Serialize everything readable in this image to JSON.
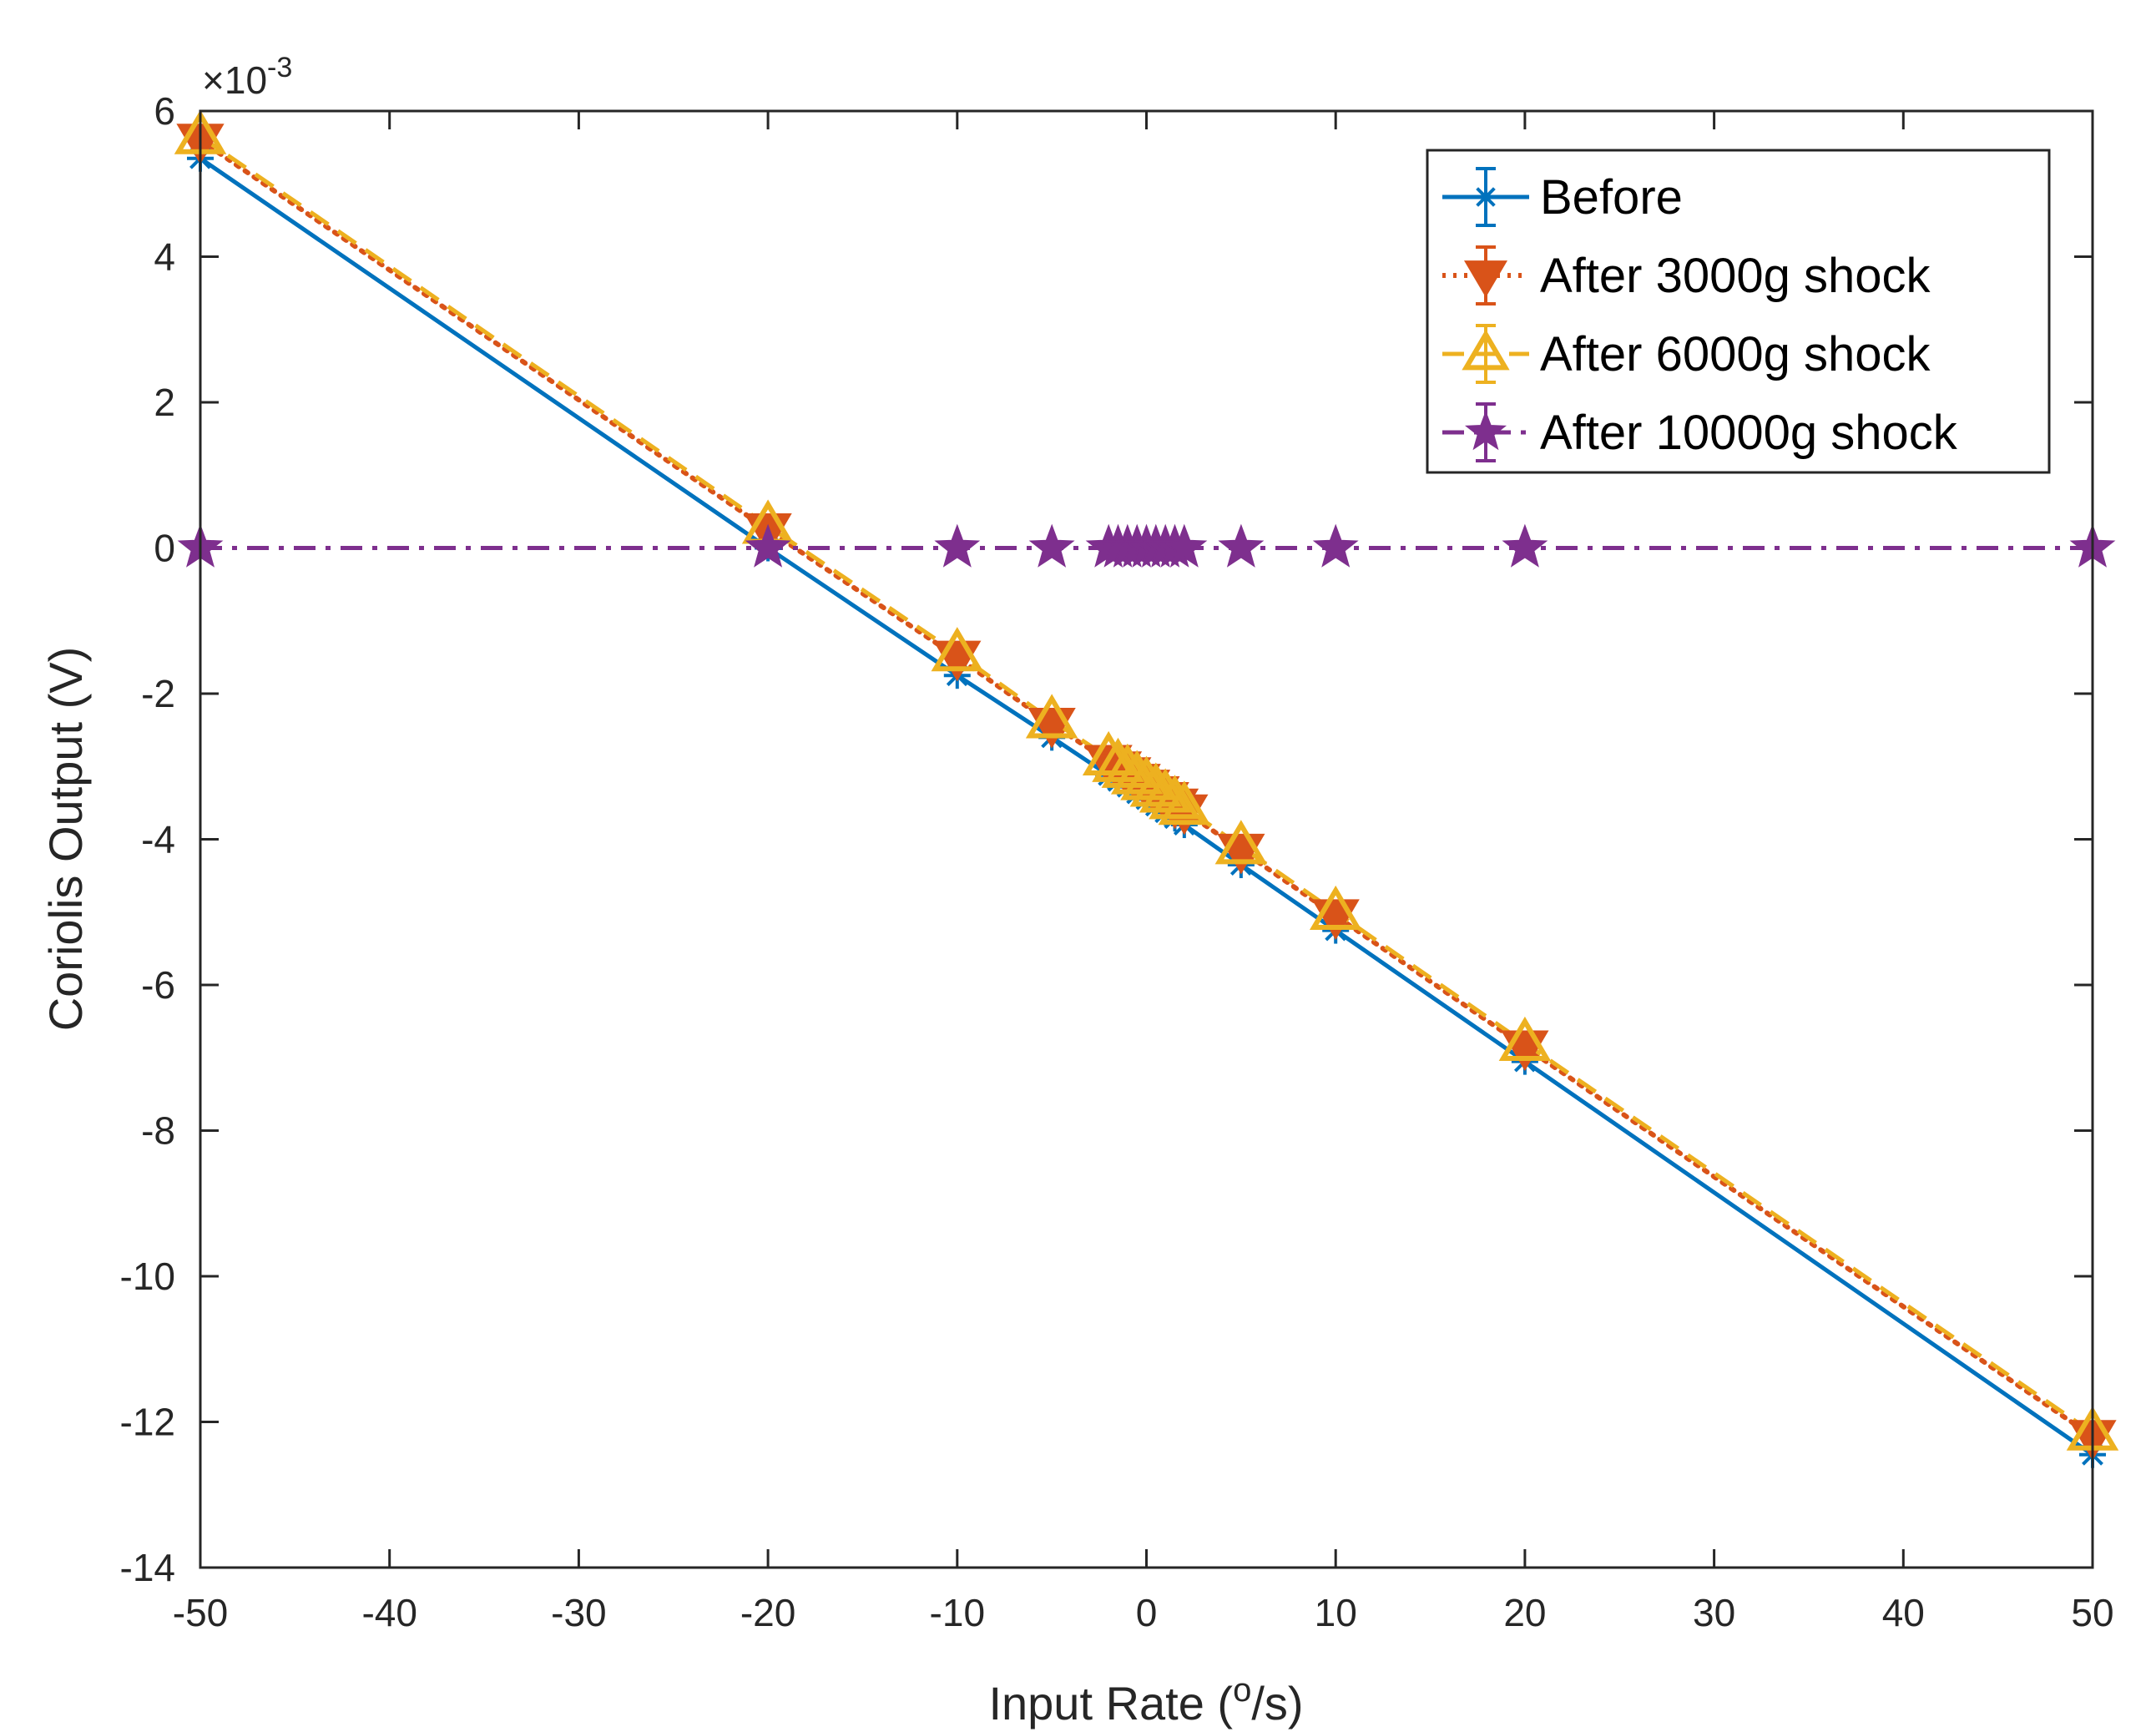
{
  "chart_data": {
    "type": "line",
    "title": "",
    "xlabel_prefix": "Input Rate (",
    "xlabel_sup": "o",
    "xlabel_suffix": "/s)",
    "ylabel": "Coriolis Output (V)",
    "y_exponent_base": "×10",
    "y_exponent": "-3",
    "xlim": [
      -50,
      50
    ],
    "ylim": [
      -14,
      6
    ],
    "xticks": [
      -50,
      -40,
      -30,
      -20,
      -10,
      0,
      10,
      20,
      30,
      40,
      50
    ],
    "yticks": [
      -14,
      -12,
      -10,
      -8,
      -6,
      -4,
      -2,
      0,
      2,
      4,
      6
    ],
    "legend_position": "top-right",
    "x": [
      -50,
      -20,
      -10,
      -5,
      -2,
      -1.5,
      -1,
      -0.5,
      0,
      0.5,
      1,
      1.5,
      2,
      5,
      10,
      20,
      50
    ],
    "series": [
      {
        "name": "Before",
        "color": "#0072BD",
        "line_style": "solid",
        "marker": "asterisk",
        "values": [
          5.35,
          0.0,
          -1.75,
          -2.6,
          -3.12,
          -3.2,
          -3.28,
          -3.37,
          -3.45,
          -3.54,
          -3.63,
          -3.71,
          -3.8,
          -4.35,
          -5.25,
          -7.05,
          -12.45
        ]
      },
      {
        "name": "After 3000g shock",
        "color": "#D95319",
        "line_style": "dotted",
        "marker": "triangle-down",
        "values": [
          5.6,
          0.25,
          -1.5,
          -2.42,
          -2.93,
          -3.02,
          -3.1,
          -3.19,
          -3.27,
          -3.36,
          -3.44,
          -3.53,
          -3.61,
          -4.15,
          -5.05,
          -6.85,
          -12.2
        ]
      },
      {
        "name": "After 6000g shock",
        "color": "#EDB120",
        "line_style": "dashed",
        "marker": "triangle-up",
        "values": [
          5.65,
          0.3,
          -1.45,
          -2.37,
          -2.88,
          -2.97,
          -3.05,
          -3.14,
          -3.22,
          -3.31,
          -3.39,
          -3.48,
          -3.56,
          -4.1,
          -5.0,
          -6.8,
          -12.15
        ]
      },
      {
        "name": "After 10000g shock",
        "color": "#7E2F8E",
        "line_style": "dashdot",
        "marker": "pentagram",
        "values": [
          0,
          0,
          0,
          0,
          0,
          0,
          0,
          0,
          0,
          0,
          0,
          0,
          0,
          0,
          0,
          0,
          0
        ]
      }
    ]
  }
}
